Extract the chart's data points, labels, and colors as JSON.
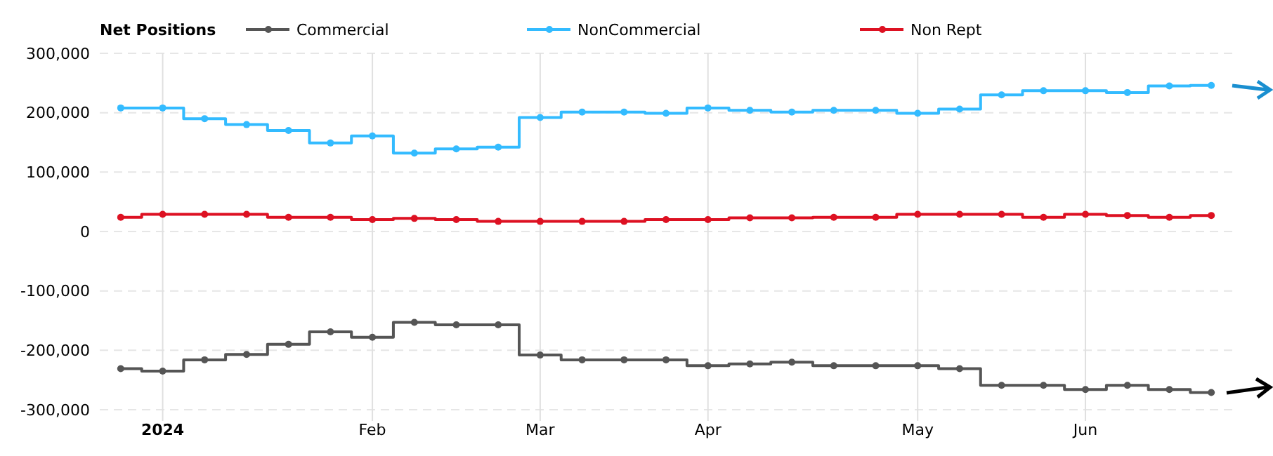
{
  "chart_data": {
    "type": "step",
    "legend_title": "Net Positions",
    "legend": "top",
    "grid": true,
    "marker": "circle",
    "line_style": "solid",
    "categories": [
      null,
      "2024",
      null,
      null,
      null,
      null,
      "Feb",
      null,
      null,
      null,
      "Mar",
      null,
      null,
      null,
      "Apr",
      null,
      null,
      null,
      null,
      "May",
      null,
      null,
      null,
      "Jun",
      null,
      null,
      null
    ],
    "ylim": [
      -300000,
      300000
    ],
    "yticks": [
      {
        "value": -300000,
        "label": "-300,000"
      },
      {
        "value": -200000,
        "label": "-200,000"
      },
      {
        "value": -100000,
        "label": "-100,000"
      },
      0,
      {
        "value": 100000,
        "label": "100,000"
      },
      {
        "value": 200000,
        "label": "200,000"
      },
      {
        "value": 300000,
        "label": "300,000"
      }
    ],
    "series": [
      {
        "name": "Commercial",
        "color": "#555555",
        "values": [
          -231000,
          -235000,
          -216000,
          -207000,
          -190000,
          -169000,
          -178000,
          -153000,
          -157000,
          -157000,
          -208000,
          -216000,
          -216000,
          -216000,
          -226000,
          -223000,
          -220000,
          -226000,
          -226000,
          -226000,
          -231000,
          -259000,
          -259000,
          -266000,
          -259000,
          -266000,
          -271000
        ]
      },
      {
        "name": "NonCommercial",
        "color": "#33bbff",
        "values": [
          208000,
          208000,
          190000,
          180000,
          170000,
          149000,
          161000,
          132000,
          139000,
          142000,
          192000,
          201000,
          201000,
          199000,
          208000,
          204000,
          201000,
          204000,
          204000,
          199000,
          206000,
          230000,
          237000,
          237000,
          234000,
          245000,
          246000
        ]
      },
      {
        "name": "Non Rept",
        "color": "#dd1122",
        "values": [
          24000,
          29000,
          29000,
          29000,
          24000,
          24000,
          20000,
          22000,
          20000,
          17000,
          17000,
          17000,
          17000,
          20000,
          20000,
          23000,
          23000,
          24000,
          24000,
          29000,
          29000,
          29000,
          24000,
          29000,
          27000,
          24000,
          27000
        ]
      }
    ]
  }
}
